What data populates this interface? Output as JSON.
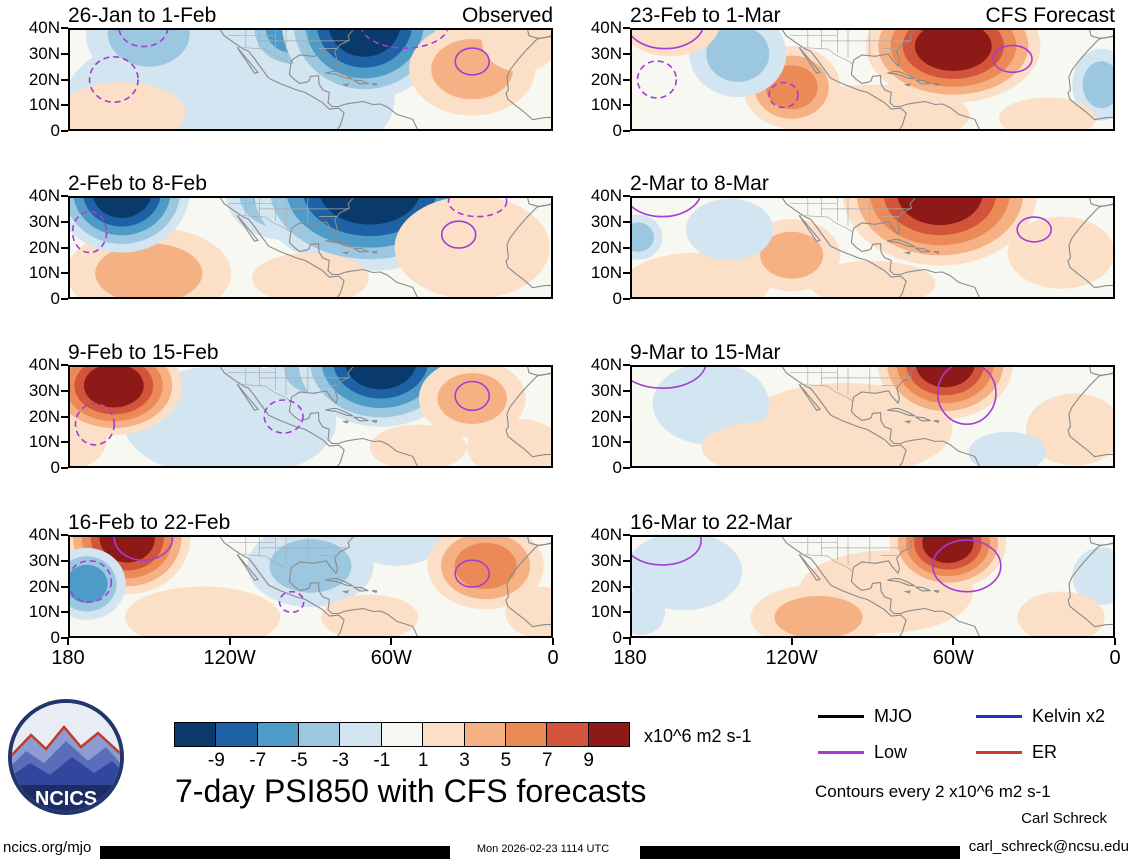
{
  "chart_data": {
    "type": "heatmap",
    "title": "7-day PSI850 with CFS forecasts",
    "units_label": "x10^6 m2 s-1",
    "contour_note": "Contours every 2 x10^6 m2 s-1",
    "columns": [
      "Observed",
      "CFS Forecast"
    ],
    "x_tick_labels": [
      "180",
      "120W",
      "60W",
      "0"
    ],
    "y_tick_labels": [
      "40N",
      "30N",
      "20N",
      "10N",
      "0"
    ],
    "lon_domain_deg_west": [
      180,
      0
    ],
    "lat_domain_deg_north": [
      0,
      40
    ],
    "panel_bg": "#f8f8f2",
    "contour_color": "#a43dd6",
    "colorbar": {
      "boundaries": [
        -9,
        -7,
        -5,
        -3,
        -1,
        1,
        3,
        5,
        7,
        9
      ],
      "colors": [
        "#0a3a6b",
        "#1e62a5",
        "#4f9bc7",
        "#9cc7e0",
        "#d3e5f0",
        "#f8f8f2",
        "#fbdfc7",
        "#f5b183",
        "#ec8a57",
        "#d2543a",
        "#8e1a17"
      ]
    },
    "legend": [
      {
        "label": "MJO",
        "color": "#000000"
      },
      {
        "label": "Kelvin x2",
        "color": "#2233cc"
      },
      {
        "label": "Low",
        "color": "#a43dd6"
      },
      {
        "label": "ER",
        "color": "#d0392b"
      }
    ],
    "panels": [
      {
        "id": "obs-week1",
        "title": "26-Jan to 1-Feb",
        "column": "Observed",
        "corner_label": "Observed",
        "anomalies": [
          {
            "lon": 120,
            "lat": 12,
            "peak": -1.5,
            "rx": 0.34,
            "ry": 0.75
          },
          {
            "lon": 150,
            "lat": 38,
            "peak": -4,
            "rx": 0.13,
            "ry": 0.5
          },
          {
            "lon": 97,
            "lat": 40,
            "peak": -6,
            "rx": 0.1,
            "ry": 0.45
          },
          {
            "lon": 70,
            "lat": 42,
            "peak": -11,
            "rx": 0.17,
            "ry": 0.75
          },
          {
            "lon": 160,
            "lat": 7,
            "peak": 2,
            "rx": 0.13,
            "ry": 0.3
          },
          {
            "lon": 30,
            "lat": 24,
            "peak": 3.5,
            "rx": 0.13,
            "ry": 0.45
          },
          {
            "lon": 12,
            "lat": 35,
            "peak": 2,
            "rx": 0.08,
            "ry": 0.3
          }
        ],
        "contours": [
          {
            "lon": 163,
            "lat": 20,
            "rx": 0.05,
            "ry": 0.22,
            "style": "dashed"
          },
          {
            "lon": 152,
            "lat": 40,
            "rx": 0.05,
            "ry": 0.18,
            "style": "dashed"
          },
          {
            "lon": 55,
            "lat": 41,
            "rx": 0.09,
            "ry": 0.22,
            "style": "dashed"
          },
          {
            "lon": 30,
            "lat": 27,
            "rx": 0.035,
            "ry": 0.13,
            "style": "solid"
          }
        ]
      },
      {
        "id": "obs-week2",
        "title": "2-Feb to 8-Feb",
        "column": "Observed",
        "anomalies": [
          {
            "lon": 150,
            "lat": 10,
            "peak": 4.5,
            "rx": 0.17,
            "ry": 0.45
          },
          {
            "lon": 160,
            "lat": 42,
            "peak": -10,
            "rx": 0.14,
            "ry": 0.6
          },
          {
            "lon": 100,
            "lat": 41,
            "peak": -6,
            "rx": 0.12,
            "ry": 0.45
          },
          {
            "lon": 68,
            "lat": 43,
            "peak": -13,
            "rx": 0.24,
            "ry": 0.8
          },
          {
            "lon": 30,
            "lat": 20,
            "peak": 2.5,
            "rx": 0.16,
            "ry": 0.5
          },
          {
            "lon": 90,
            "lat": 8,
            "peak": 1.8,
            "rx": 0.12,
            "ry": 0.25
          }
        ],
        "contours": [
          {
            "lon": 172,
            "lat": 26,
            "rx": 0.035,
            "ry": 0.2,
            "style": "dashed"
          },
          {
            "lon": 35,
            "lat": 25,
            "rx": 0.035,
            "ry": 0.13,
            "style": "solid"
          },
          {
            "lon": 28,
            "lat": 38,
            "rx": 0.06,
            "ry": 0.15,
            "style": "dashed"
          }
        ]
      },
      {
        "id": "obs-week3",
        "title": "9-Feb to 15-Feb",
        "column": "Observed",
        "anomalies": [
          {
            "lon": 120,
            "lat": 18,
            "peak": -2.5,
            "rx": 0.22,
            "ry": 0.55
          },
          {
            "lon": 178,
            "lat": 12,
            "peak": 2.5,
            "rx": 0.07,
            "ry": 0.3
          },
          {
            "lon": 163,
            "lat": 32,
            "peak": 11,
            "rx": 0.14,
            "ry": 0.48
          },
          {
            "lon": 88,
            "lat": 38,
            "peak": -4,
            "rx": 0.1,
            "ry": 0.35
          },
          {
            "lon": 64,
            "lat": 42,
            "peak": -11,
            "rx": 0.17,
            "ry": 0.65
          },
          {
            "lon": 30,
            "lat": 27,
            "peak": 4.5,
            "rx": 0.11,
            "ry": 0.38
          },
          {
            "lon": 14,
            "lat": 8,
            "peak": 2,
            "rx": 0.1,
            "ry": 0.28
          },
          {
            "lon": 50,
            "lat": 8,
            "peak": 1.8,
            "rx": 0.1,
            "ry": 0.22
          }
        ],
        "contours": [
          {
            "lon": 170,
            "lat": 17,
            "rx": 0.04,
            "ry": 0.2,
            "style": "dashed"
          },
          {
            "lon": 100,
            "lat": 20,
            "rx": 0.04,
            "ry": 0.16,
            "style": "dashed"
          },
          {
            "lon": 30,
            "lat": 28,
            "rx": 0.035,
            "ry": 0.14,
            "style": "solid"
          }
        ]
      },
      {
        "id": "obs-week4",
        "title": "16-Feb to 22-Feb",
        "column": "Observed",
        "anomalies": [
          {
            "lon": 130,
            "lat": 8,
            "peak": 2,
            "rx": 0.16,
            "ry": 0.3
          },
          {
            "lon": 158,
            "lat": 39,
            "peak": 13,
            "rx": 0.13,
            "ry": 0.55
          },
          {
            "lon": 173,
            "lat": 21,
            "peak": -5,
            "rx": 0.08,
            "ry": 0.35
          },
          {
            "lon": 90,
            "lat": 28,
            "peak": -3.5,
            "rx": 0.13,
            "ry": 0.4
          },
          {
            "lon": 58,
            "lat": 40,
            "peak": -2,
            "rx": 0.1,
            "ry": 0.3
          },
          {
            "lon": 25,
            "lat": 28,
            "peak": 5.5,
            "rx": 0.12,
            "ry": 0.42
          },
          {
            "lon": 68,
            "lat": 8,
            "peak": 1.8,
            "rx": 0.1,
            "ry": 0.22
          },
          {
            "lon": 5,
            "lat": 10,
            "peak": 2,
            "rx": 0.07,
            "ry": 0.25
          }
        ],
        "contours": [
          {
            "lon": 152,
            "lat": 39,
            "rx": 0.06,
            "ry": 0.22,
            "style": "solid"
          },
          {
            "lon": 172,
            "lat": 22,
            "rx": 0.045,
            "ry": 0.2,
            "style": "dashed"
          },
          {
            "lon": 30,
            "lat": 25,
            "rx": 0.035,
            "ry": 0.13,
            "style": "solid"
          },
          {
            "lon": 97,
            "lat": 14,
            "rx": 0.025,
            "ry": 0.1,
            "style": "dashed"
          }
        ]
      },
      {
        "id": "fcst-week1",
        "title": "23-Feb to 1-Mar",
        "column": "CFS Forecast",
        "corner_label": "CFS Forecast",
        "anomalies": [
          {
            "lon": 90,
            "lat": 6,
            "peak": 1.8,
            "rx": 0.2,
            "ry": 0.3
          },
          {
            "lon": 60,
            "lat": 33,
            "peak": 11,
            "rx": 0.18,
            "ry": 0.55
          },
          {
            "lon": 120,
            "lat": 17,
            "peak": 5,
            "rx": 0.1,
            "ry": 0.4
          },
          {
            "lon": 140,
            "lat": 30,
            "peak": -4.5,
            "rx": 0.1,
            "ry": 0.42
          },
          {
            "lon": 165,
            "lat": 41,
            "peak": 2.5,
            "rx": 0.1,
            "ry": 0.3
          },
          {
            "lon": 5,
            "lat": 18,
            "peak": -3.5,
            "rx": 0.06,
            "ry": 0.35
          },
          {
            "lon": 25,
            "lat": 5,
            "peak": 1.8,
            "rx": 0.1,
            "ry": 0.2
          }
        ],
        "contours": [
          {
            "lon": 167,
            "lat": 42,
            "rx": 0.08,
            "ry": 0.25,
            "style": "solid"
          },
          {
            "lon": 38,
            "lat": 28,
            "rx": 0.04,
            "ry": 0.13,
            "style": "solid"
          },
          {
            "lon": 170,
            "lat": 20,
            "rx": 0.04,
            "ry": 0.18,
            "style": "dashed"
          },
          {
            "lon": 123,
            "lat": 14,
            "rx": 0.03,
            "ry": 0.12,
            "style": "dashed"
          }
        ]
      },
      {
        "id": "fcst-week2",
        "title": "2-Mar to 8-Mar",
        "column": "CFS Forecast",
        "anomalies": [
          {
            "lon": 155,
            "lat": 6,
            "peak": 2,
            "rx": 0.15,
            "ry": 0.3
          },
          {
            "lon": 65,
            "lat": 41,
            "peak": 13,
            "rx": 0.2,
            "ry": 0.7
          },
          {
            "lon": 120,
            "lat": 17,
            "peak": 4.5,
            "rx": 0.1,
            "ry": 0.35
          },
          {
            "lon": 143,
            "lat": 27,
            "peak": -2,
            "rx": 0.09,
            "ry": 0.3
          },
          {
            "lon": 177,
            "lat": 24,
            "peak": -3,
            "rx": 0.05,
            "ry": 0.22
          },
          {
            "lon": 20,
            "lat": 18,
            "peak": 2.2,
            "rx": 0.11,
            "ry": 0.35
          },
          {
            "lon": 90,
            "lat": 6,
            "peak": 1.8,
            "rx": 0.13,
            "ry": 0.22
          }
        ],
        "contours": [
          {
            "lon": 168,
            "lat": 42,
            "rx": 0.08,
            "ry": 0.25,
            "style": "solid"
          },
          {
            "lon": 30,
            "lat": 27,
            "rx": 0.035,
            "ry": 0.12,
            "style": "solid"
          }
        ]
      },
      {
        "id": "fcst-week3",
        "title": "9-Mar to 15-Mar",
        "column": "CFS Forecast",
        "anomalies": [
          {
            "lon": 100,
            "lat": 15,
            "peak": 2.2,
            "rx": 0.22,
            "ry": 0.45
          },
          {
            "lon": 63,
            "lat": 41,
            "peak": 9.5,
            "rx": 0.14,
            "ry": 0.55
          },
          {
            "lon": 150,
            "lat": 25,
            "peak": -2,
            "rx": 0.12,
            "ry": 0.4
          },
          {
            "lon": 15,
            "lat": 15,
            "peak": 2.2,
            "rx": 0.1,
            "ry": 0.35
          },
          {
            "lon": 130,
            "lat": 8,
            "peak": 2,
            "rx": 0.13,
            "ry": 0.25
          },
          {
            "lon": 40,
            "lat": 6,
            "peak": -1.5,
            "rx": 0.08,
            "ry": 0.2
          }
        ],
        "contours": [
          {
            "lon": 168,
            "lat": 41,
            "rx": 0.09,
            "ry": 0.25,
            "style": "solid"
          },
          {
            "lon": 55,
            "lat": 29,
            "rx": 0.06,
            "ry": 0.3,
            "style": "solid"
          }
        ]
      },
      {
        "id": "fcst-week4",
        "title": "16-Mar to 22-Mar",
        "column": "CFS Forecast",
        "anomalies": [
          {
            "lon": 85,
            "lat": 18,
            "peak": 2.2,
            "rx": 0.18,
            "ry": 0.4
          },
          {
            "lon": 62,
            "lat": 37,
            "peak": 11,
            "rx": 0.12,
            "ry": 0.45
          },
          {
            "lon": 110,
            "lat": 8,
            "peak": 4.5,
            "rx": 0.14,
            "ry": 0.32
          },
          {
            "lon": 160,
            "lat": 26,
            "peak": -2,
            "rx": 0.12,
            "ry": 0.38
          },
          {
            "lon": 176,
            "lat": 10,
            "peak": -2.5,
            "rx": 0.05,
            "ry": 0.22
          },
          {
            "lon": 5,
            "lat": 24,
            "peak": -2,
            "rx": 0.06,
            "ry": 0.28
          },
          {
            "lon": 20,
            "lat": 8,
            "peak": 2,
            "rx": 0.09,
            "ry": 0.25
          }
        ],
        "contours": [
          {
            "lon": 168,
            "lat": 38,
            "rx": 0.08,
            "ry": 0.24,
            "style": "solid"
          },
          {
            "lon": 55,
            "lat": 28,
            "rx": 0.07,
            "ry": 0.25,
            "style": "solid"
          }
        ]
      }
    ]
  },
  "footer": {
    "logo_text": "NCICS",
    "credit_name": "Carl Schreck",
    "credit_email": "carl_schreck@ncsu.edu",
    "site": "ncics.org/mjo",
    "timestamp": "Mon 2026-02-23 1114 UTC"
  }
}
